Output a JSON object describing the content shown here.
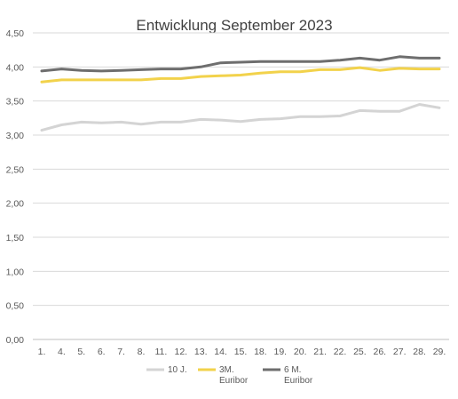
{
  "chart_data": {
    "type": "line",
    "title": "Entwicklung September 2023",
    "xlabel": "",
    "ylabel": "",
    "ylim": [
      0,
      4.5
    ],
    "yticks": [
      "0,00",
      "0,50",
      "1,00",
      "1,50",
      "2,00",
      "2,50",
      "3,00",
      "3,50",
      "4,00",
      "4,50"
    ],
    "categories": [
      "1.",
      "4.",
      "5.",
      "6.",
      "7.",
      "8.",
      "11.",
      "12.",
      "13.",
      "14.",
      "15.",
      "18.",
      "19.",
      "20.",
      "21.",
      "22.",
      "25.",
      "26.",
      "27.",
      "28.",
      "29."
    ],
    "grid": true,
    "legend_position": "bottom",
    "series": [
      {
        "name": "10 J.",
        "color": "#d4d4d4",
        "values": [
          3.07,
          3.15,
          3.19,
          3.18,
          3.19,
          3.16,
          3.19,
          3.19,
          3.23,
          3.22,
          3.2,
          3.23,
          3.24,
          3.27,
          3.27,
          3.28,
          3.36,
          3.35,
          3.35,
          3.45,
          3.4
        ]
      },
      {
        "name": "3M. Euribor",
        "color": "#f2d24b",
        "values": [
          3.78,
          3.81,
          3.81,
          3.81,
          3.81,
          3.81,
          3.83,
          3.83,
          3.86,
          3.87,
          3.88,
          3.91,
          3.93,
          3.93,
          3.96,
          3.96,
          3.99,
          3.95,
          3.98,
          3.97,
          3.97
        ]
      },
      {
        "name": "6 M. Euribor",
        "color": "#6e6e6e",
        "values": [
          3.94,
          3.97,
          3.95,
          3.94,
          3.95,
          3.96,
          3.97,
          3.97,
          4.0,
          4.06,
          4.07,
          4.08,
          4.08,
          4.08,
          4.08,
          4.1,
          4.13,
          4.1,
          4.15,
          4.13,
          4.13
        ]
      }
    ],
    "legend": [
      {
        "lines": [
          "10 J.",
          ""
        ]
      },
      {
        "lines": [
          "3M.",
          "Euribor"
        ]
      },
      {
        "lines": [
          "6 M.",
          "Euribor"
        ]
      }
    ]
  }
}
